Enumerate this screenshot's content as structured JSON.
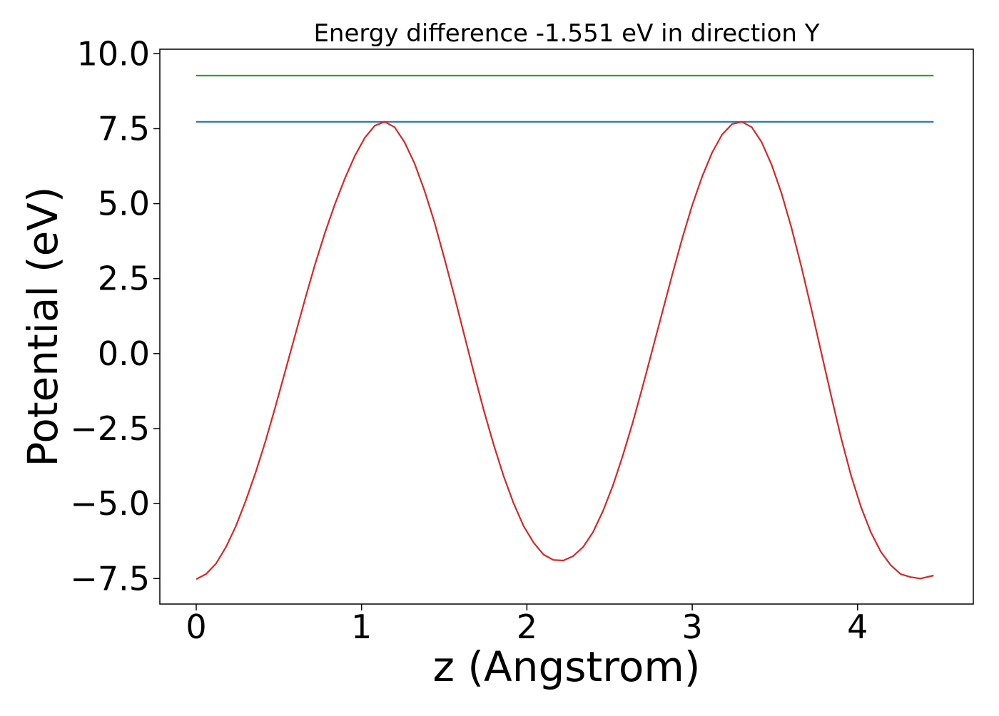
{
  "chart_data": {
    "type": "line",
    "title": "Energy difference -1.551 eV in direction Y",
    "xlabel": "z (Angstrom)",
    "ylabel": "Potential (eV)",
    "xlim": [
      -0.22,
      4.7
    ],
    "ylim": [
      -8.35,
      10.15
    ],
    "xticks": [
      0,
      1,
      2,
      3,
      4
    ],
    "xtick_labels": [
      "0",
      "1",
      "2",
      "3",
      "4"
    ],
    "yticks": [
      10.0,
      7.5,
      5.0,
      2.5,
      0.0,
      -2.5,
      -5.0,
      -7.5
    ],
    "ytick_labels": [
      "10.0",
      "7.5",
      "5.0",
      "2.5",
      "0.0",
      "−2.5",
      "−5.0",
      "−7.5"
    ],
    "grid": false,
    "legend": "none",
    "series": [
      {
        "color": "#2ca02c",
        "x": [
          0,
          4.46
        ],
        "y": [
          9.27,
          9.27
        ]
      },
      {
        "color": "#1f77b4",
        "x": [
          0,
          4.46
        ],
        "y": [
          7.73,
          7.73
        ]
      },
      {
        "color": "#d62728",
        "x": [
          0.0,
          0.06,
          0.12,
          0.18,
          0.24,
          0.3,
          0.36,
          0.42,
          0.48,
          0.54,
          0.6,
          0.66,
          0.72,
          0.78,
          0.84,
          0.9,
          0.96,
          1.02,
          1.08,
          1.14,
          1.2,
          1.26,
          1.32,
          1.38,
          1.44,
          1.5,
          1.56,
          1.62,
          1.68,
          1.74,
          1.8,
          1.86,
          1.92,
          1.98,
          2.04,
          2.1,
          2.16,
          2.22,
          2.28,
          2.34,
          2.4,
          2.46,
          2.52,
          2.58,
          2.64,
          2.7,
          2.76,
          2.82,
          2.88,
          2.94,
          3.0,
          3.06,
          3.12,
          3.18,
          3.24,
          3.3,
          3.36,
          3.42,
          3.48,
          3.54,
          3.6,
          3.66,
          3.72,
          3.78,
          3.84,
          3.9,
          3.96,
          4.02,
          4.08,
          4.14,
          4.2,
          4.26,
          4.32,
          4.38,
          4.46
        ],
        "y": [
          -7.52,
          -7.35,
          -7.0,
          -6.45,
          -5.75,
          -4.9,
          -3.95,
          -2.9,
          -1.75,
          -0.55,
          0.65,
          1.85,
          3.0,
          4.05,
          5.0,
          5.85,
          6.6,
          7.2,
          7.6,
          7.73,
          7.55,
          7.05,
          6.35,
          5.45,
          4.4,
          3.2,
          1.95,
          0.65,
          -0.65,
          -1.9,
          -3.05,
          -4.1,
          -5.0,
          -5.75,
          -6.3,
          -6.7,
          -6.88,
          -6.9,
          -6.75,
          -6.45,
          -5.95,
          -5.25,
          -4.4,
          -3.4,
          -2.3,
          -1.1,
          0.15,
          1.4,
          2.65,
          3.85,
          4.95,
          5.9,
          6.7,
          7.3,
          7.65,
          7.73,
          7.55,
          7.05,
          6.3,
          5.35,
          4.2,
          2.9,
          1.5,
          0.05,
          -1.4,
          -2.8,
          -4.05,
          -5.1,
          -5.95,
          -6.6,
          -7.05,
          -7.35,
          -7.45,
          -7.5,
          -7.4
        ]
      }
    ]
  }
}
